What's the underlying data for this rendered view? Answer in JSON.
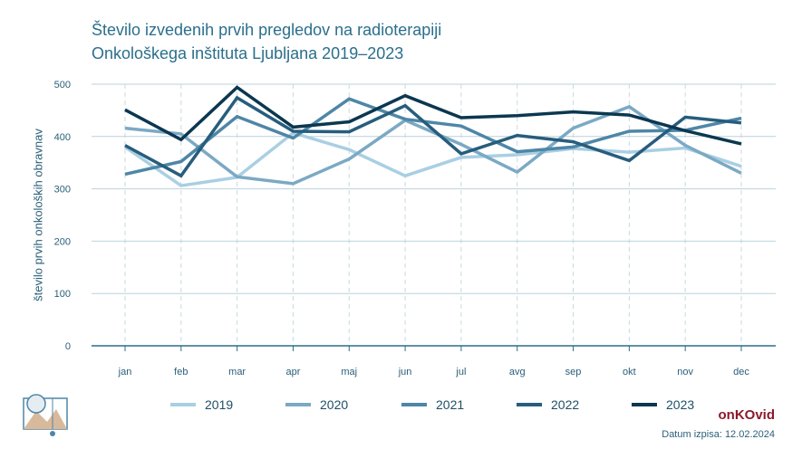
{
  "title_line1": "Število izvedenih prvih pregledov na radioterapiji",
  "title_line2": "Onkološkega inštituta Ljubljana 2019–2023",
  "brand": "onKOvid",
  "printed": "Datum izpisa: 12.02.2024",
  "chart_data": {
    "type": "line",
    "categories": [
      "jan",
      "feb",
      "mar",
      "apr",
      "maj",
      "jun",
      "jul",
      "avg",
      "sep",
      "okt",
      "nov",
      "dec"
    ],
    "ylabel": "število prvih onkoloških obravnav",
    "ylim": [
      0,
      500
    ],
    "yticks": [
      0,
      100,
      200,
      300,
      400,
      500
    ],
    "grid": true,
    "legend": "bottom",
    "series": [
      {
        "name": "2019",
        "color": "#a9cfe3",
        "values": [
          380,
          306,
          322,
          407,
          375,
          325,
          360,
          365,
          377,
          370,
          378,
          343
        ]
      },
      {
        "name": "2020",
        "color": "#7ba9c4",
        "values": [
          416,
          405,
          323,
          310,
          357,
          431,
          385,
          332,
          416,
          457,
          383,
          330
        ]
      },
      {
        "name": "2021",
        "color": "#4e86a7",
        "values": [
          328,
          352,
          438,
          397,
          472,
          433,
          420,
          371,
          380,
          410,
          412,
          435
        ]
      },
      {
        "name": "2022",
        "color": "#275d7d",
        "values": [
          383,
          325,
          474,
          410,
          409,
          459,
          367,
          402,
          390,
          354,
          437,
          426
        ]
      },
      {
        "name": "2023",
        "color": "#0b3750",
        "values": [
          451,
          394,
          494,
          418,
          428,
          478,
          436,
          440,
          447,
          441,
          411,
          386
        ]
      }
    ]
  }
}
